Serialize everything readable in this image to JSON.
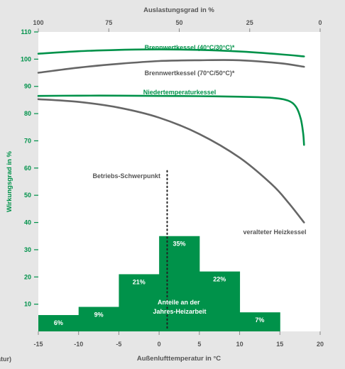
{
  "chart_data": {
    "type": "line+bar",
    "x_bottom": {
      "label": "Außenlufttemperatur in °C",
      "ticks": [
        -15,
        -10,
        -5,
        0,
        5,
        10,
        15,
        20
      ],
      "range": [
        -15,
        20
      ]
    },
    "x_top": {
      "label": "Auslastungsgrad in %",
      "ticks": [
        100,
        75,
        50,
        25,
        0
      ]
    },
    "y": {
      "label": "Wirkungsgrad in %",
      "ticks": [
        10,
        20,
        30,
        40,
        50,
        60,
        70,
        80,
        90,
        100,
        110
      ],
      "range": [
        0,
        110
      ]
    },
    "left_cut_label": "atur)",
    "series": [
      {
        "name": "Brennwertkessel (40°C/30°C)*",
        "color": "#00924a",
        "points": [
          [
            -15,
            102
          ],
          [
            -10,
            102.9
          ],
          [
            -5,
            103.4
          ],
          [
            0,
            103.6
          ],
          [
            5,
            103.4
          ],
          [
            10,
            102.8
          ],
          [
            15,
            101.8
          ],
          [
            18,
            101
          ]
        ]
      },
      {
        "name": "Brennwertkessel (70°C/50°C)*",
        "color": "#666666",
        "points": [
          [
            -15,
            95
          ],
          [
            -10,
            96.9
          ],
          [
            -5,
            98.3
          ],
          [
            0,
            99.3
          ],
          [
            5,
            99.6
          ],
          [
            10,
            99.6
          ],
          [
            15,
            98.5
          ],
          [
            18,
            97.2
          ]
        ]
      },
      {
        "name": "Niedertemperaturkessel",
        "color": "#00924a",
        "points": [
          [
            -15,
            86.5
          ],
          [
            -10,
            86.6
          ],
          [
            -5,
            86.6
          ],
          [
            0,
            86.5
          ],
          [
            5,
            86.4
          ],
          [
            10,
            86.2
          ],
          [
            14,
            85.8
          ],
          [
            16,
            84.8
          ],
          [
            17,
            82.5
          ],
          [
            17.6,
            78
          ],
          [
            17.9,
            72.5
          ],
          [
            18,
            68.5
          ]
        ]
      },
      {
        "name": "veralteter Heizkessel",
        "color": "#666666",
        "points": [
          [
            -15,
            85.3
          ],
          [
            -10,
            84.3
          ],
          [
            -5,
            82.2
          ],
          [
            0,
            78.5
          ],
          [
            5,
            72.5
          ],
          [
            10,
            63.8
          ],
          [
            14,
            54
          ],
          [
            16,
            47.5
          ],
          [
            18,
            40
          ]
        ]
      }
    ],
    "bars": {
      "label": "Anteile an der Jahres-Heizarbeit",
      "color": "#00924a",
      "items": [
        {
          "from": -15,
          "to": -10,
          "value": 6,
          "text": "6%"
        },
        {
          "from": -10,
          "to": -5,
          "value": 9,
          "text": "9%"
        },
        {
          "from": -5,
          "to": 0,
          "value": 21,
          "text": "21%"
        },
        {
          "from": 0,
          "to": 5,
          "value": 35,
          "text": "35%"
        },
        {
          "from": 5,
          "to": 10,
          "value": 22,
          "text": "22%"
        },
        {
          "from": 10,
          "to": 15,
          "value": 7,
          "text": "7%"
        }
      ]
    },
    "annotation": {
      "text": "Betriebs-Schwerpunkt",
      "x": 1,
      "y_from": 1,
      "y_to": 59
    }
  }
}
